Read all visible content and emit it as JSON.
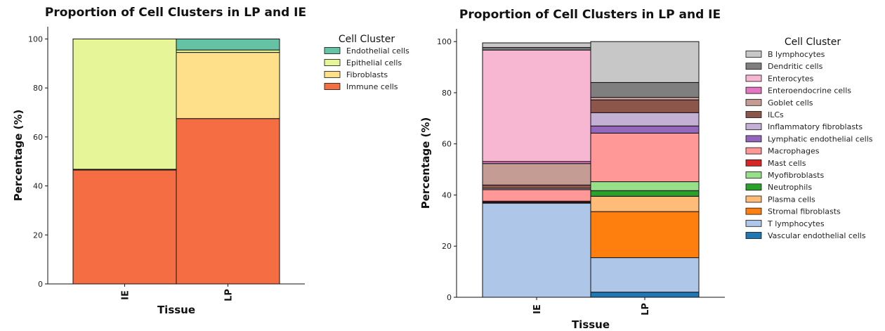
{
  "chart_data": [
    {
      "type": "bar",
      "stacked": true,
      "title": "Proportion of Cell Clusters in LP and IE",
      "xlabel": "Tissue",
      "ylabel": "Percentage (%)",
      "categories": [
        "IE",
        "LP"
      ],
      "ylim": [
        0,
        105
      ],
      "yticks": [
        0,
        20,
        40,
        60,
        80,
        100
      ],
      "grid": false,
      "legend_title": "Cell Cluster",
      "legend_position": "right",
      "series": [
        {
          "name": "Immune cells",
          "color": "#f46d43",
          "values": [
            46.5,
            67.5
          ]
        },
        {
          "name": "Fibroblasts",
          "color": "#fee08b",
          "values": [
            0.3,
            27.0
          ]
        },
        {
          "name": "Epithelial cells",
          "color": "#e6f598",
          "values": [
            53.2,
            1.0
          ]
        },
        {
          "name": "Endothelial cells",
          "color": "#66c2a5",
          "values": [
            0.0,
            4.5
          ]
        }
      ]
    },
    {
      "type": "bar",
      "stacked": true,
      "title": "Proportion of Cell Clusters in LP and IE",
      "xlabel": "Tissue",
      "ylabel": "Percentage (%)",
      "categories": [
        "IE",
        "LP"
      ],
      "ylim": [
        0,
        105
      ],
      "yticks": [
        0,
        20,
        40,
        60,
        80,
        100
      ],
      "grid": false,
      "legend_title": "Cell Cluster",
      "legend_position": "right",
      "series": [
        {
          "name": "Vascular endothelial cells",
          "color": "#1f77b4",
          "values": [
            0.0,
            2.0
          ]
        },
        {
          "name": "T lymphocytes",
          "color": "#aec7e8",
          "values": [
            36.8,
            13.5
          ]
        },
        {
          "name": "Stromal fibroblasts",
          "color": "#ff7f0e",
          "values": [
            0.0,
            18.0
          ]
        },
        {
          "name": "Plasma cells",
          "color": "#ffbb78",
          "values": [
            0.0,
            6.0
          ]
        },
        {
          "name": "Neutrophils",
          "color": "#2ca02c",
          "values": [
            0.2,
            2.2
          ]
        },
        {
          "name": "Myofibroblasts",
          "color": "#98df8a",
          "values": [
            0.2,
            3.5
          ]
        },
        {
          "name": "Mast cells",
          "color": "#d62728",
          "values": [
            0.4,
            0.0
          ]
        },
        {
          "name": "Macrophages",
          "color": "#ff9896",
          "values": [
            4.5,
            19.0
          ]
        },
        {
          "name": "Lymphatic endothelial cells",
          "color": "#9467bd",
          "values": [
            0.0,
            2.8
          ]
        },
        {
          "name": "Inflammatory fibroblasts",
          "color": "#c5b0d5",
          "values": [
            0.5,
            5.2
          ]
        },
        {
          "name": "ILCs",
          "color": "#8c564b",
          "values": [
            1.3,
            5.0
          ]
        },
        {
          "name": "Goblet cells",
          "color": "#c49c94",
          "values": [
            8.4,
            1.0
          ]
        },
        {
          "name": "Enteroendocrine cells",
          "color": "#e377c2",
          "values": [
            0.8,
            0.0
          ]
        },
        {
          "name": "Enterocytes",
          "color": "#f7b6d2",
          "values": [
            43.6,
            0.0
          ]
        },
        {
          "name": "Dendritic cells",
          "color": "#7f7f7f",
          "values": [
            1.0,
            5.8
          ]
        },
        {
          "name": "B lymphocytes",
          "color": "#c7c7c7",
          "values": [
            1.8,
            16.0
          ]
        }
      ]
    }
  ]
}
